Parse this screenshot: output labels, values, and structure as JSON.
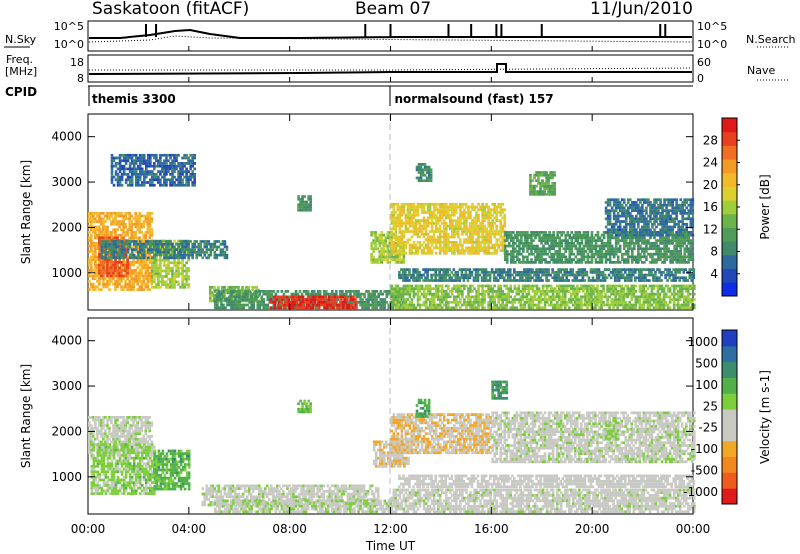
{
  "header": {
    "station_title": "Saskatoon (fitACF)",
    "beam": "Beam 07",
    "date": "11/Jun/2010"
  },
  "summary_panels": {
    "nsky_label": "N.Sky",
    "nsky_ticks": [
      "10^5",
      "10^0"
    ],
    "nsearch_label": "N.Search",
    "nsearch_ticks": [
      "10^5",
      "10^0"
    ],
    "freq_label": "Freq.",
    "freq_unit": "[MHz]",
    "freq_ticks": [
      "18",
      "8"
    ],
    "nave_label": "Nave",
    "nave_ticks": [
      "60",
      "0"
    ],
    "cpid_label": "CPID",
    "cpid_segments": [
      {
        "label": "themis 3300",
        "start_hour": 0
      },
      {
        "label": "normalsound (fast) 157",
        "start_hour": 12
      }
    ]
  },
  "time_axis": {
    "xlabel": "Time UT",
    "ticks": [
      "00:00",
      "04:00",
      "08:00",
      "12:00",
      "16:00",
      "20:00",
      "00:00"
    ],
    "range_hours": [
      0,
      24
    ]
  },
  "chart_data": [
    {
      "type": "heatmap",
      "title": "",
      "xlabel": "Time UT",
      "ylabel": "Slant Range [km]",
      "ylim": [
        180,
        4500
      ],
      "yticks": [
        "1000",
        "2000",
        "3000",
        "4000"
      ],
      "xlim": [
        0,
        24
      ],
      "colorbar": {
        "label": "Power [dB]",
        "ticks": [
          "4",
          "8",
          "12",
          "16",
          "20",
          "24",
          "28"
        ],
        "range": [
          0,
          32
        ],
        "colors": [
          "#0f2ce6",
          "#2147b8",
          "#2e6aa0",
          "#3e8a6a",
          "#4f9b57",
          "#6ab44a",
          "#9fcd3b",
          "#dbd02f",
          "#f2b92b",
          "#f39a27",
          "#ef6e22",
          "#e8401e",
          "#de1a1a"
        ]
      },
      "regions": [
        {
          "t0": 0.0,
          "t1": 2.5,
          "r0": 600,
          "r1": 2300,
          "value": 22
        },
        {
          "t0": 0.4,
          "t1": 1.6,
          "r0": 900,
          "r1": 1800,
          "value": 27
        },
        {
          "t0": 2.5,
          "t1": 4.0,
          "r0": 650,
          "r1": 1700,
          "value": 16
        },
        {
          "t0": 0.5,
          "t1": 5.5,
          "r0": 1300,
          "r1": 1700,
          "value": 8
        },
        {
          "t0": 4.8,
          "t1": 6.8,
          "r0": 350,
          "r1": 700,
          "value": 14
        },
        {
          "t0": 5.0,
          "t1": 12.5,
          "r0": 200,
          "r1": 600,
          "value": 10
        },
        {
          "t0": 7.2,
          "t1": 10.6,
          "r0": 200,
          "r1": 450,
          "value": 30
        },
        {
          "t0": 8.3,
          "t1": 8.8,
          "r0": 2350,
          "r1": 2700,
          "value": 10
        },
        {
          "t0": 11.2,
          "t1": 12.5,
          "r0": 1200,
          "r1": 1900,
          "value": 16
        },
        {
          "t0": 12.0,
          "t1": 16.5,
          "r0": 1400,
          "r1": 2500,
          "value": 19
        },
        {
          "t0": 12.3,
          "t1": 24.0,
          "r0": 800,
          "r1": 1100,
          "value": 8
        },
        {
          "t0": 12.0,
          "t1": 24.0,
          "r0": 200,
          "r1": 700,
          "value": 15
        },
        {
          "t0": 16.5,
          "t1": 24.0,
          "r0": 1200,
          "r1": 1900,
          "value": 10
        },
        {
          "t0": 20.5,
          "t1": 24.0,
          "r0": 1800,
          "r1": 2600,
          "value": 7
        },
        {
          "t0": 0.9,
          "t1": 4.2,
          "r0": 2900,
          "r1": 3600,
          "value": 6
        },
        {
          "t0": 13.0,
          "t1": 13.6,
          "r0": 3000,
          "r1": 3400,
          "value": 9
        },
        {
          "t0": 17.5,
          "t1": 18.5,
          "r0": 2700,
          "r1": 3200,
          "value": 12
        }
      ]
    },
    {
      "type": "heatmap",
      "title": "",
      "xlabel": "Time UT",
      "ylabel": "Slant Range [km]",
      "ylim": [
        180,
        4500
      ],
      "yticks": [
        "1000",
        "2000",
        "3000",
        "4000"
      ],
      "xlim": [
        0,
        24
      ],
      "colorbar": {
        "label": "Velocity [m s-1]",
        "ticks": [
          "1000",
          "500",
          "100",
          "25",
          "-25",
          "-100",
          "-500",
          "-1000"
        ],
        "range": [
          -1200,
          1200
        ],
        "colors": [
          "#de1a1a",
          "#ef5a1e",
          "#f2861f",
          "#f3a726",
          "#c9c9c4",
          "#c9c9c4",
          "#7ccf3b",
          "#52b04a",
          "#3b8e6b",
          "#2d6fa3",
          "#2140c0"
        ]
      },
      "regions": [
        {
          "t0": 0.0,
          "t1": 2.5,
          "r0": 1500,
          "r1": 2300,
          "value": 0
        },
        {
          "t0": 0.1,
          "t1": 2.6,
          "r0": 600,
          "r1": 1700,
          "value": 180
        },
        {
          "t0": 2.6,
          "t1": 4.0,
          "r0": 700,
          "r1": 1600,
          "value": 400
        },
        {
          "t0": 4.5,
          "t1": 11.5,
          "r0": 350,
          "r1": 800,
          "value": 0
        },
        {
          "t0": 5.0,
          "t1": 12.0,
          "r0": 200,
          "r1": 450,
          "value": 60
        },
        {
          "t0": 8.3,
          "t1": 8.8,
          "r0": 2400,
          "r1": 2700,
          "value": 300
        },
        {
          "t0": 11.3,
          "t1": 12.7,
          "r0": 1200,
          "r1": 1800,
          "value": -250
        },
        {
          "t0": 12.0,
          "t1": 16.0,
          "r0": 1500,
          "r1": 2400,
          "value": -300
        },
        {
          "t0": 16.0,
          "t1": 24.0,
          "r0": 1300,
          "r1": 2400,
          "value": 0
        },
        {
          "t0": 12.0,
          "t1": 24.0,
          "r0": 200,
          "r1": 700,
          "value": -20
        },
        {
          "t0": 12.3,
          "t1": 24.0,
          "r0": 750,
          "r1": 1050,
          "value": -60
        },
        {
          "t0": 13.0,
          "t1": 13.5,
          "r0": 2300,
          "r1": 2700,
          "value": 500
        },
        {
          "t0": 16.0,
          "t1": 16.6,
          "r0": 2700,
          "r1": 3100,
          "value": 600
        },
        {
          "t0": 20.5,
          "t1": 21.0,
          "r0": 1800,
          "r1": 2200,
          "value": 150
        }
      ]
    }
  ]
}
